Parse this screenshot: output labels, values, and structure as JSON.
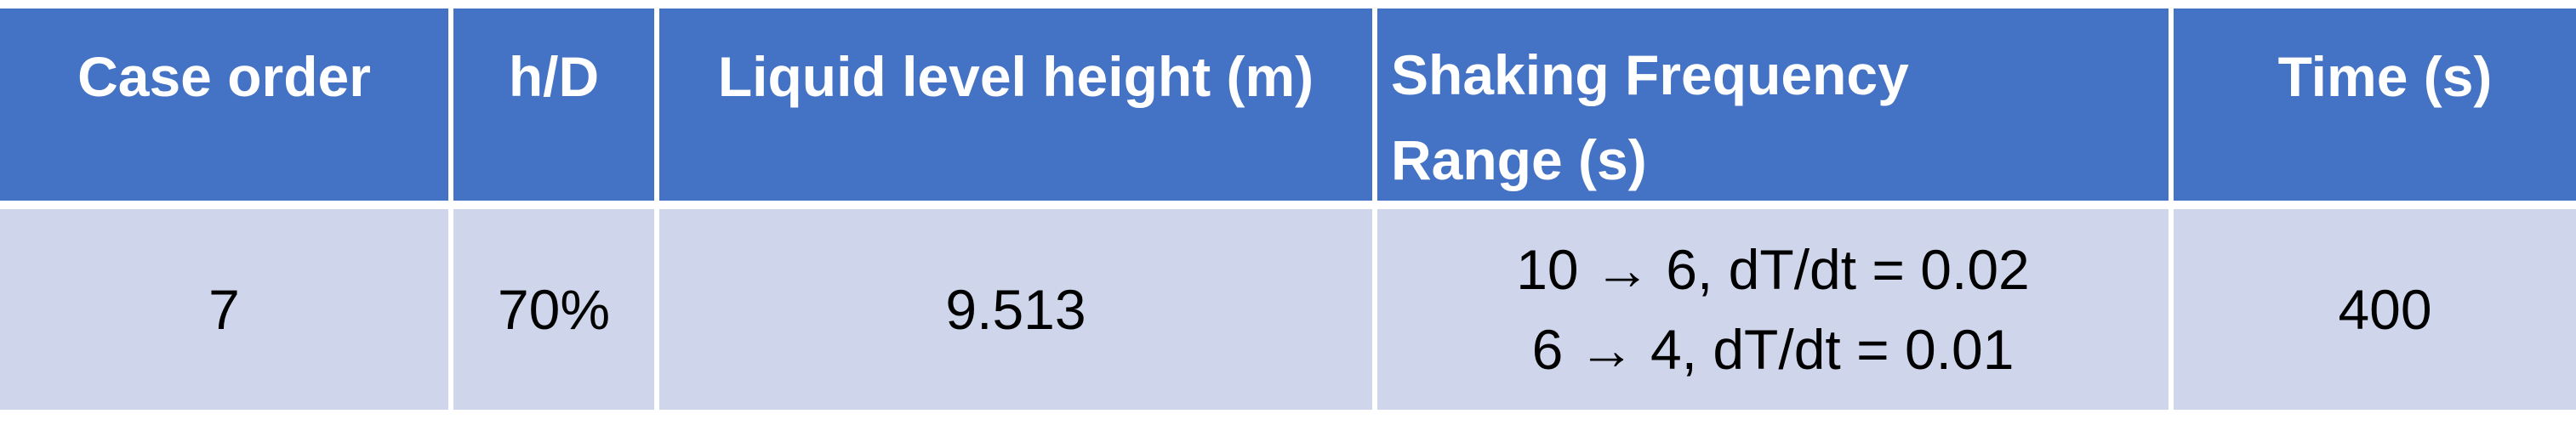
{
  "table": {
    "headers": [
      "Case order",
      "h/D",
      "Liquid level height (m)",
      "Shaking Frequency Range (s)",
      "Time (s)"
    ],
    "header_lines": {
      "shaking_line1": "Shaking Frequency",
      "shaking_line2": "Range (s)"
    },
    "row": {
      "case_order": "7",
      "h_d": "70%",
      "liquid_level_height": "9.513",
      "shaking_range_line1": "10 → 6, dT/dt = 0.02",
      "shaking_range_line2": "6 → 4, dT/dt = 0.01",
      "time": "400"
    }
  },
  "colors": {
    "header_bg": "#4472c4",
    "row_bg": "#cfd5ea",
    "header_text": "#ffffff",
    "row_text": "#000000"
  }
}
